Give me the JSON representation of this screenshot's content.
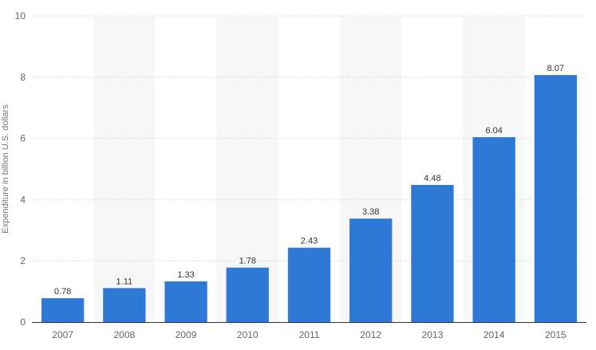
{
  "chart_data": {
    "type": "bar",
    "categories": [
      "2007",
      "2008",
      "2009",
      "2010",
      "2011",
      "2012",
      "2013",
      "2014",
      "2015"
    ],
    "values": [
      0.78,
      1.11,
      1.33,
      1.78,
      2.43,
      3.38,
      4.48,
      6.04,
      8.07
    ],
    "data_labels": [
      "0.78",
      "1.11",
      "1.33",
      "1.78",
      "2.43",
      "3.38",
      "4.48",
      "6.04",
      "8.07"
    ],
    "title": "",
    "xlabel": "",
    "ylabel": "Expenditure in billion U.S. dollars",
    "ylim": [
      0,
      10
    ],
    "yticks": [
      0,
      2,
      4,
      6,
      8,
      10
    ],
    "ytick_labels": [
      "0",
      "2",
      "4",
      "6",
      "8",
      "10"
    ],
    "grid": true,
    "legend": "none",
    "bar_color": "#2e78d6",
    "band_color": "#f7f7f7",
    "grid_color": "#d0d0d0"
  }
}
